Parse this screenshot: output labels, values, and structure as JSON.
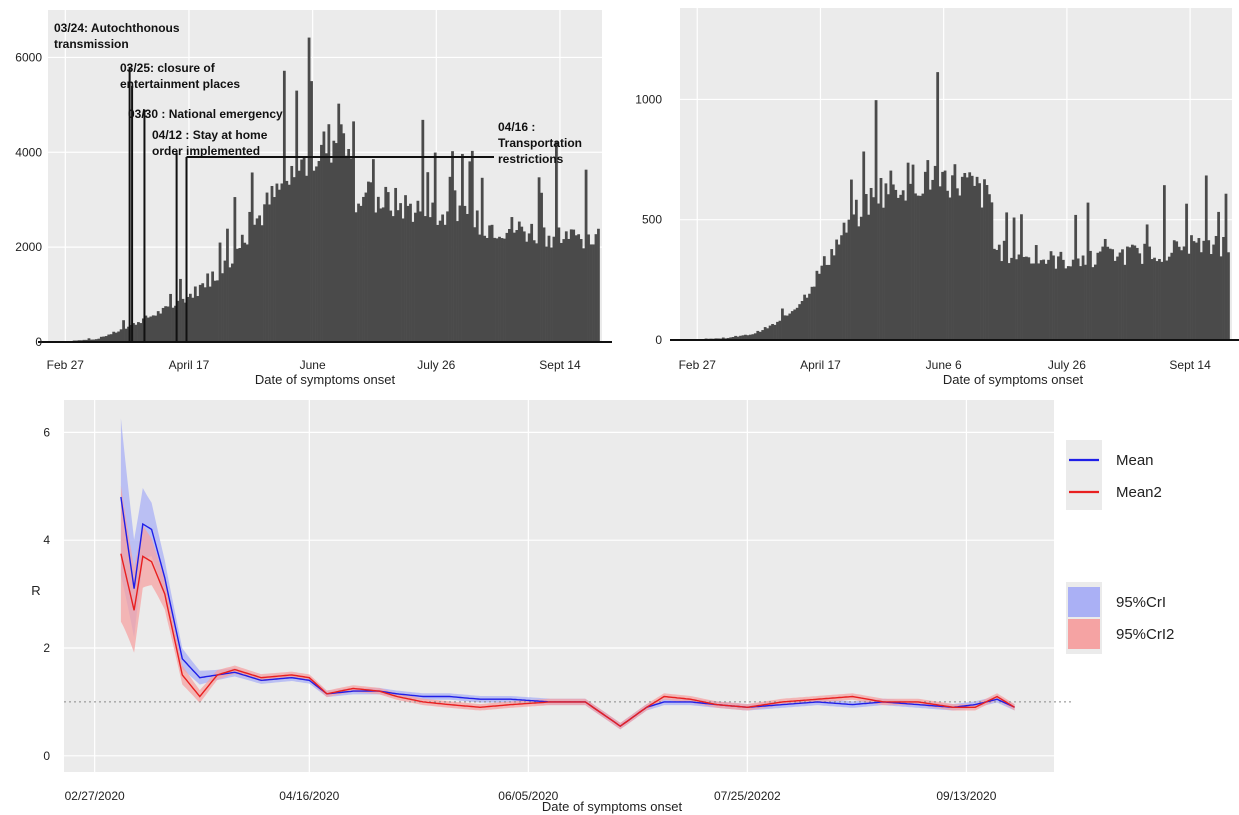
{
  "colors": {
    "panel_bg": "#ebebeb",
    "grid": "#ffffff",
    "bar": "#4a4a4a",
    "mean": "#1f1fe8",
    "mean2": "#e81f1f",
    "cri": "#aab0f5",
    "cri2": "#f5a3a3",
    "reference": "#888888"
  },
  "chart_data": [
    {
      "type": "bar",
      "xlabel": "Date of symptoms onset",
      "ylabel": "",
      "y_ticks": [
        "0",
        "2000",
        "4000",
        "6000"
      ],
      "x_ticks": [
        "Feb 27",
        "April 17",
        "June",
        "July 26",
        "Sept 14"
      ],
      "ylim": [
        0,
        7000
      ],
      "x_range": [
        "2020-02-20",
        "2020-10-01"
      ],
      "x_tick_dates": [
        "2020-02-27",
        "2020-04-17",
        "2020-06-06",
        "2020-07-26",
        "2020-09-14"
      ],
      "curve_keypoints": {
        "dates": [
          "2020-02-20",
          "2020-03-10",
          "2020-03-20",
          "2020-03-30",
          "2020-04-10",
          "2020-04-20",
          "2020-05-01",
          "2020-05-10",
          "2020-05-20",
          "2020-06-01",
          "2020-06-10",
          "2020-06-15",
          "2020-06-22",
          "2020-06-23",
          "2020-07-10",
          "2020-07-26",
          "2020-08-10",
          "2020-08-25",
          "2020-09-05",
          "2020-09-20",
          "2020-09-30"
        ],
        "values": [
          0,
          60,
          250,
          500,
          750,
          1100,
          1600,
          2300,
          3000,
          3700,
          4100,
          4300,
          4400,
          3100,
          2900,
          2700,
          2500,
          2400,
          2300,
          2200,
          2200
        ]
      },
      "annotations": [
        {
          "lines": [
            "03/24: Autochthonous",
            "transmission"
          ],
          "date": "2020-03-24",
          "top": 5800
        },
        {
          "lines": [
            "03/25: closure of",
            "entertainment places"
          ],
          "date": "2020-03-25",
          "top": 5400
        },
        {
          "lines": [
            "03/30 : National emergency"
          ],
          "date": "2020-03-30",
          "top": 4900
        },
        {
          "lines": [
            "04/12 : Stay at home",
            "order implemented"
          ],
          "date": "2020-04-12",
          "top": 4000
        },
        {
          "lines": [
            "04/16 :",
            "Transportation",
            "restrictions"
          ],
          "date": "2020-04-16",
          "top": 3900
        }
      ]
    },
    {
      "type": "bar",
      "xlabel": "Date of symptoms onset",
      "ylabel": "",
      "y_ticks": [
        "0",
        "500",
        "1000"
      ],
      "x_ticks": [
        "Feb 27",
        "April 17",
        "June 6",
        "July 26",
        "Sept 14"
      ],
      "ylim": [
        0,
        1380
      ],
      "x_range": [
        "2020-02-20",
        "2020-10-01"
      ],
      "x_tick_dates": [
        "2020-02-27",
        "2020-04-17",
        "2020-06-06",
        "2020-07-26",
        "2020-09-14"
      ],
      "curve_keypoints": {
        "dates": [
          "2020-02-20",
          "2020-03-10",
          "2020-03-20",
          "2020-04-01",
          "2020-04-10",
          "2020-04-20",
          "2020-05-01",
          "2020-05-10",
          "2020-05-20",
          "2020-06-01",
          "2020-06-10",
          "2020-06-20",
          "2020-06-25",
          "2020-06-26",
          "2020-07-10",
          "2020-07-26",
          "2020-08-10",
          "2020-08-25",
          "2020-09-10",
          "2020-09-30"
        ],
        "values": [
          0,
          8,
          25,
          80,
          180,
          350,
          520,
          620,
          660,
          680,
          670,
          620,
          580,
          380,
          340,
          330,
          350,
          360,
          380,
          400
        ]
      }
    },
    {
      "type": "line",
      "xlabel": "Date of symptoms onset",
      "ylabel": "R",
      "y_ticks": [
        "0",
        "2",
        "4",
        "6"
      ],
      "x_ticks": [
        "02/27/2020",
        "04/16/2020",
        "06/05/2020",
        "07/25/20202",
        "09/13/2020"
      ],
      "ylim": [
        -0.3,
        6.6
      ],
      "x_range": [
        "2020-02-20",
        "2020-10-03"
      ],
      "x_tick_dates": [
        "2020-02-27",
        "2020-04-16",
        "2020-06-05",
        "2020-07-25",
        "2020-09-13"
      ],
      "reference_line": 1,
      "legend": [
        {
          "label": "Mean",
          "kind": "line",
          "color": "#1f1fe8"
        },
        {
          "label": "Mean2",
          "kind": "line",
          "color": "#e81f1f"
        },
        {
          "label": "95%CrI",
          "kind": "fill",
          "color": "#aab0f5"
        },
        {
          "label": "95%CrI2",
          "kind": "fill",
          "color": "#f5a3a3"
        }
      ],
      "series": [
        {
          "name": "Mean",
          "x": [
            "2020-03-04",
            "2020-03-07",
            "2020-03-09",
            "2020-03-11",
            "2020-03-14",
            "2020-03-18",
            "2020-03-22",
            "2020-03-26",
            "2020-03-30",
            "2020-04-05",
            "2020-04-12",
            "2020-04-16",
            "2020-04-20",
            "2020-04-26",
            "2020-05-02",
            "2020-05-06",
            "2020-05-12",
            "2020-05-18",
            "2020-05-25",
            "2020-06-01",
            "2020-06-10",
            "2020-06-18",
            "2020-06-26",
            "2020-07-02",
            "2020-07-06",
            "2020-07-12",
            "2020-07-18",
            "2020-07-25",
            "2020-08-02",
            "2020-08-10",
            "2020-08-18",
            "2020-08-25",
            "2020-09-02",
            "2020-09-10",
            "2020-09-15",
            "2020-09-20",
            "2020-09-24"
          ],
          "y": [
            4.8,
            3.1,
            4.3,
            4.2,
            3.3,
            1.8,
            1.45,
            1.5,
            1.55,
            1.4,
            1.45,
            1.4,
            1.15,
            1.2,
            1.2,
            1.15,
            1.1,
            1.1,
            1.05,
            1.05,
            1.0,
            1.0,
            0.55,
            0.9,
            1.0,
            1.0,
            0.95,
            0.9,
            0.95,
            1.0,
            0.95,
            1.0,
            0.95,
            0.9,
            0.95,
            1.05,
            0.9
          ]
        },
        {
          "name": "Mean2",
          "x": [
            "2020-03-04",
            "2020-03-07",
            "2020-03-09",
            "2020-03-11",
            "2020-03-14",
            "2020-03-18",
            "2020-03-22",
            "2020-03-26",
            "2020-03-30",
            "2020-04-05",
            "2020-04-12",
            "2020-04-16",
            "2020-04-20",
            "2020-04-26",
            "2020-05-02",
            "2020-05-06",
            "2020-05-12",
            "2020-05-18",
            "2020-05-25",
            "2020-06-01",
            "2020-06-10",
            "2020-06-18",
            "2020-06-26",
            "2020-07-02",
            "2020-07-06",
            "2020-07-12",
            "2020-07-18",
            "2020-07-25",
            "2020-08-02",
            "2020-08-10",
            "2020-08-18",
            "2020-08-25",
            "2020-09-02",
            "2020-09-10",
            "2020-09-15",
            "2020-09-20",
            "2020-09-24"
          ],
          "y": [
            3.75,
            2.7,
            3.7,
            3.6,
            3.0,
            1.5,
            1.1,
            1.5,
            1.6,
            1.45,
            1.5,
            1.45,
            1.15,
            1.25,
            1.2,
            1.1,
            1.0,
            0.95,
            0.9,
            0.95,
            1.0,
            1.0,
            0.55,
            0.9,
            1.1,
            1.05,
            0.95,
            0.9,
            1.0,
            1.05,
            1.1,
            1.0,
            1.0,
            0.9,
            0.9,
            1.1,
            0.9
          ]
        }
      ]
    }
  ]
}
